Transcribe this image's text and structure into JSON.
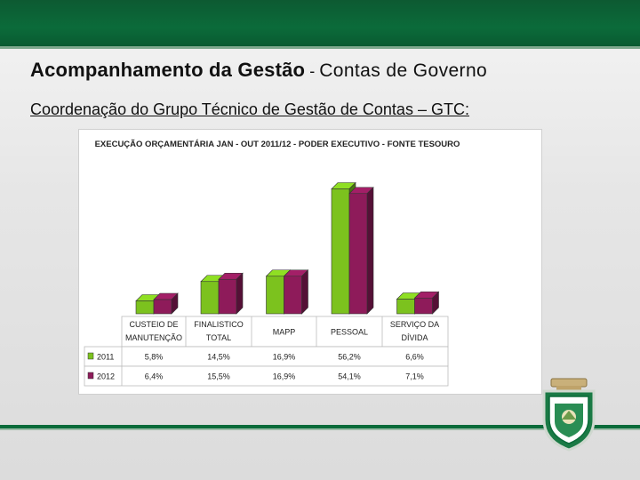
{
  "header": {
    "title_main": "Acompanhamento da Gestão",
    "title_sep": " - ",
    "title_rest": "Contas de Governo",
    "subtitle": "Coordenação do Grupo Técnico de Gestão de Contas – GTC:"
  },
  "colors": {
    "series_2011": "#7cc21e",
    "series_2012": "#8e1b5a",
    "brand_green": "#0b6b3a"
  },
  "chart_data": {
    "type": "bar",
    "title": "EXECUÇÃO ORÇAMENTÁRIA JAN - OUT 2011/12 - PODER EXECUTIVO - FONTE TESOURO",
    "categories": [
      [
        "CUSTEIO DE",
        "MANUTENÇÃO"
      ],
      [
        "FINALISTICO",
        "TOTAL"
      ],
      [
        "MAPP"
      ],
      [
        "PESSOAL"
      ],
      [
        "SERVIÇO DA",
        "DÍVIDA"
      ]
    ],
    "series": [
      {
        "name": "2011",
        "values": [
          5.8,
          14.5,
          16.9,
          56.2,
          6.6
        ],
        "labels": [
          "5,8%",
          "14,5%",
          "16,9%",
          "56,2%",
          "6,6%"
        ]
      },
      {
        "name": "2012",
        "values": [
          6.4,
          15.5,
          16.9,
          54.1,
          7.1
        ],
        "labels": [
          "6,4%",
          "15,5%",
          "16,9%",
          "54,1%",
          "7,1%"
        ]
      }
    ],
    "unit": "%",
    "ylim": [
      0,
      60
    ],
    "legend": "data-table",
    "grid": false
  }
}
